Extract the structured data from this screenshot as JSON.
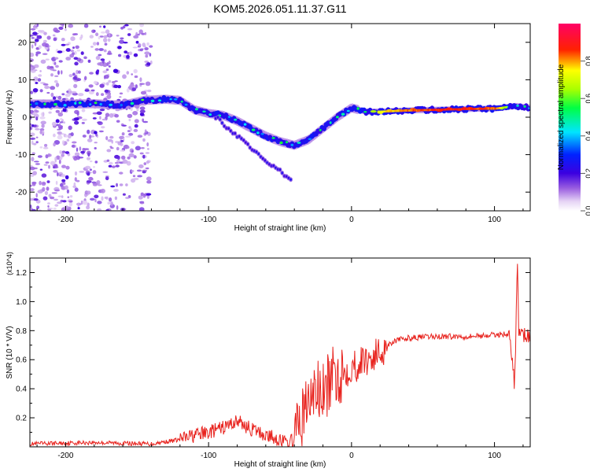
{
  "title": "KOM5.2026.051.11.37.G11",
  "chart_data": [
    {
      "type": "heatmap",
      "xlabel": "Height of straight line (km)",
      "ylabel": "Frequency (Hz)",
      "xlim": [
        -225,
        125
      ],
      "ylim": [
        -25,
        25
      ],
      "x_ticks": [
        -200,
        -100,
        0,
        100
      ],
      "y_ticks": [
        -20,
        -10,
        0,
        10,
        20
      ],
      "grid": false,
      "colorbar": {
        "label": "Normalized spectral amplitude",
        "range": [
          0,
          1
        ],
        "ticks": [
          "0.0",
          "0.2",
          "0.4",
          "0.6",
          "0.8"
        ],
        "colormap": "rainbow (white-purple-blue-cyan-green-yellow-red-pink)"
      },
      "ridge": [
        {
          "x": -225,
          "y": 3.5,
          "amp": 0.45
        },
        {
          "x": -200,
          "y": 3.5,
          "amp": 0.5
        },
        {
          "x": -180,
          "y": 3.6,
          "amp": 0.5
        },
        {
          "x": -160,
          "y": 3.2,
          "amp": 0.45
        },
        {
          "x": -145,
          "y": 4.5,
          "amp": 0.5
        },
        {
          "x": -130,
          "y": 4.8,
          "amp": 0.45
        },
        {
          "x": -120,
          "y": 4.5,
          "amp": 0.45
        },
        {
          "x": -110,
          "y": 2.0,
          "amp": 0.45
        },
        {
          "x": -100,
          "y": 1.0,
          "amp": 0.45
        },
        {
          "x": -90,
          "y": 0.5,
          "amp": 0.4
        },
        {
          "x": -80,
          "y": -1.0,
          "amp": 0.45
        },
        {
          "x": -70,
          "y": -3.0,
          "amp": 0.4
        },
        {
          "x": -60,
          "y": -5.0,
          "amp": 0.4
        },
        {
          "x": -50,
          "y": -6.5,
          "amp": 0.45
        },
        {
          "x": -40,
          "y": -7.5,
          "amp": 0.45
        },
        {
          "x": -30,
          "y": -6.0,
          "amp": 0.4
        },
        {
          "x": -20,
          "y": -3.0,
          "amp": 0.45
        },
        {
          "x": -10,
          "y": 0.0,
          "amp": 0.6
        },
        {
          "x": 0,
          "y": 2.5,
          "amp": 0.55
        },
        {
          "x": 10,
          "y": 1.5,
          "amp": 0.6
        },
        {
          "x": 20,
          "y": 1.5,
          "amp": 0.8
        },
        {
          "x": 40,
          "y": 1.8,
          "amp": 0.9
        },
        {
          "x": 60,
          "y": 2.0,
          "amp": 0.95
        },
        {
          "x": 80,
          "y": 2.2,
          "amp": 0.95
        },
        {
          "x": 100,
          "y": 2.3,
          "amp": 0.9
        },
        {
          "x": 115,
          "y": 3.0,
          "amp": 0.5
        },
        {
          "x": 125,
          "y": 2.5,
          "amp": 0.5
        }
      ],
      "secondary_branch": [
        {
          "x": -95,
          "y": 0.0
        },
        {
          "x": -80,
          "y": -5.0
        },
        {
          "x": -65,
          "y": -10.0
        },
        {
          "x": -50,
          "y": -14.5
        },
        {
          "x": -42,
          "y": -17.0
        }
      ],
      "scatter_region": {
        "x_range": [
          -225,
          -140
        ],
        "y_range": [
          -25,
          25
        ]
      }
    },
    {
      "type": "line",
      "xlabel": "Height of straight line (km)",
      "ylabel": "SNR (10 * V/V)",
      "y_multiplier": "(x10^4)",
      "xlim": [
        -225,
        125
      ],
      "ylim": [
        0,
        1.3
      ],
      "x_ticks": [
        -200,
        -100,
        0,
        100
      ],
      "y_ticks": [
        "0.2",
        "0.4",
        "0.6",
        "0.8",
        "1.0",
        "1.2"
      ],
      "grid": false,
      "series": [
        {
          "color": "#e8231e",
          "x": [
            -225,
            -180,
            -140,
            -120,
            -110,
            -100,
            -90,
            -80,
            -70,
            -60,
            -50,
            -45,
            -40,
            -35,
            -30,
            -25,
            -20,
            -15,
            -10,
            -5,
            0,
            5,
            10,
            15,
            20,
            25,
            30,
            40,
            60,
            80,
            100,
            110,
            113,
            114,
            115,
            116,
            117,
            118,
            120,
            125
          ],
          "y": [
            0.02,
            0.03,
            0.02,
            0.05,
            0.08,
            0.1,
            0.13,
            0.18,
            0.12,
            0.08,
            0.05,
            0.02,
            0.05,
            0.2,
            0.3,
            0.4,
            0.35,
            0.45,
            0.5,
            0.52,
            0.55,
            0.57,
            0.6,
            0.62,
            0.65,
            0.7,
            0.73,
            0.75,
            0.76,
            0.76,
            0.77,
            0.78,
            0.55,
            0.4,
            0.8,
            1.3,
            0.8,
            0.78,
            0.77,
            0.76
          ]
        }
      ]
    }
  ]
}
